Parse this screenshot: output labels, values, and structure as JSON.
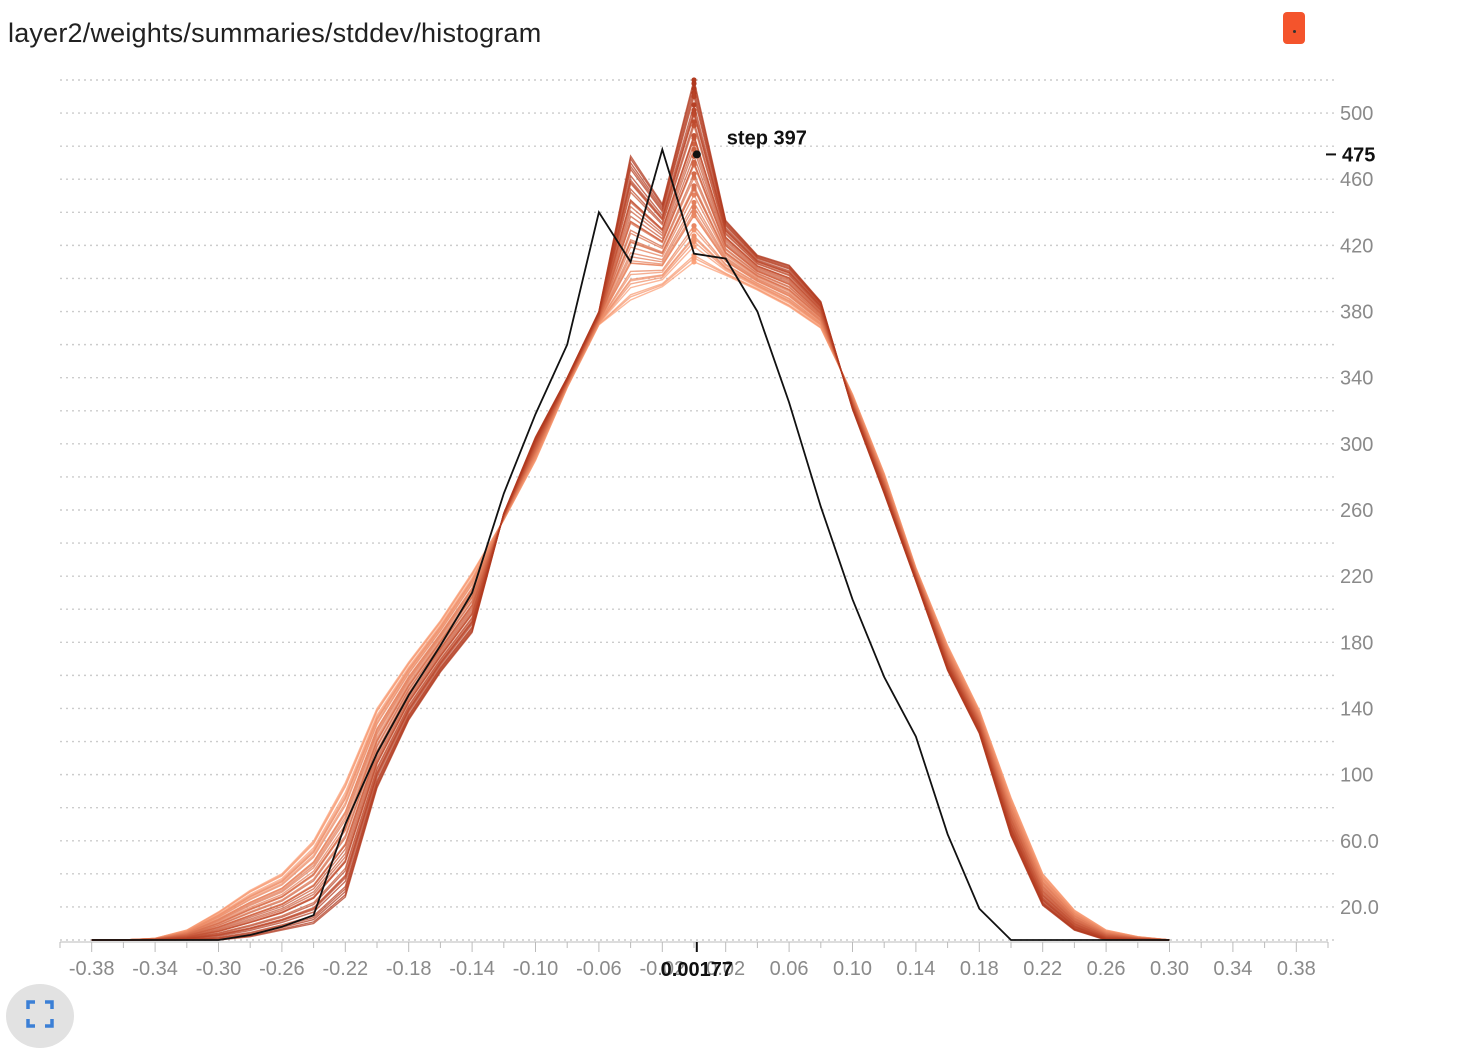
{
  "header": {
    "title": "layer2/weights/summaries/stddev/histogram"
  },
  "colors": {
    "accent": "#f4542c",
    "line_dark": "#b0381e",
    "line_light": "#fca27a",
    "highlight": "#111111",
    "grid": "#cccccc",
    "tick": "#8a8a8a"
  },
  "controls": {
    "color_swatch_icon": "color-swatch",
    "fullscreen_icon": "fullscreen-icon"
  },
  "chart_data": {
    "type": "line",
    "xlim": [
      -0.4,
      0.4
    ],
    "ylim": [
      0,
      520
    ],
    "x_ticks": [
      "-0.38",
      "-0.34",
      "-0.30",
      "-0.26",
      "-0.22",
      "-0.18",
      "-0.14",
      "-0.10",
      "-0.06",
      "-0.02",
      "0.02",
      "0.06",
      "0.10",
      "0.14",
      "0.18",
      "0.22",
      "0.26",
      "0.30",
      "0.34",
      "0.38"
    ],
    "y_ticks": [
      "20.0",
      "60.0",
      "100",
      "140",
      "180",
      "220",
      "260",
      "300",
      "340",
      "380",
      "420",
      "460",
      "500"
    ],
    "grid": true,
    "x": [
      -0.38,
      -0.36,
      -0.34,
      -0.32,
      -0.3,
      -0.28,
      -0.26,
      -0.24,
      -0.22,
      -0.2,
      -0.18,
      -0.16,
      -0.14,
      -0.12,
      -0.1,
      -0.08,
      -0.06,
      -0.04,
      -0.02,
      0.0,
      0.02,
      0.04,
      0.06,
      0.08,
      0.1,
      0.12,
      0.14,
      0.16,
      0.18,
      0.2,
      0.22,
      0.24,
      0.26,
      0.28,
      0.3
    ],
    "series_first": [
      0,
      0,
      1,
      6,
      17,
      30,
      40,
      60,
      95,
      140,
      168,
      193,
      222,
      254,
      290,
      334,
      372,
      387,
      395,
      410,
      402,
      393,
      383,
      370,
      330,
      282,
      225,
      178,
      139,
      86,
      40,
      18,
      6,
      2,
      0
    ],
    "series_last": [
      0,
      0,
      0,
      0,
      0,
      2,
      6,
      10,
      26,
      92,
      133,
      162,
      186,
      258,
      304,
      340,
      380,
      474,
      445,
      520,
      435,
      414,
      408,
      386,
      321,
      270,
      217,
      163,
      125,
      63,
      21,
      6,
      0,
      0,
      0
    ],
    "highlight_series": [
      0,
      0,
      0,
      0,
      0,
      3,
      8,
      15,
      70,
      113,
      148,
      178,
      210,
      270,
      318,
      360,
      440,
      410,
      478,
      415,
      412,
      380,
      325,
      262,
      206,
      159,
      123,
      64,
      19,
      0,
      0,
      0,
      0,
      0,
      0
    ],
    "num_steps": 40,
    "hover": {
      "step_label": "step 397",
      "x_value_label": "0.00177",
      "y_value_label": "475"
    }
  }
}
